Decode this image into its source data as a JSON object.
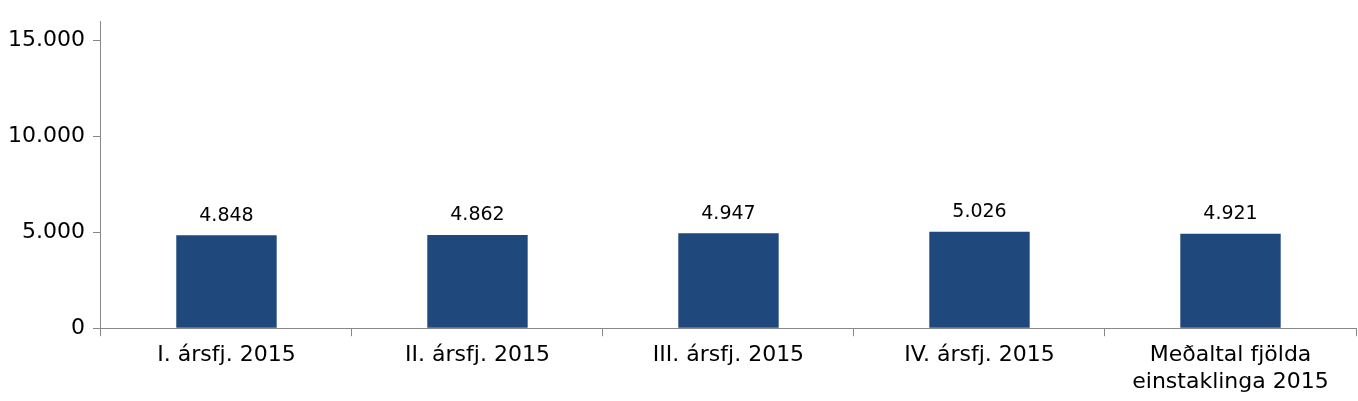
{
  "chart_data": {
    "type": "bar",
    "categories": [
      "I. ársfj. 2015",
      "II. ársfj. 2015",
      "III. ársfj. 2015",
      "IV. ársfj. 2015",
      "Meðaltal fjölda einstaklinga 2015"
    ],
    "values": [
      4848,
      4862,
      4947,
      5026,
      4921
    ],
    "value_labels": [
      "4.848",
      "4.862",
      "4.947",
      "5.026",
      "4.921"
    ],
    "color": "#1f497d",
    "ylim": [
      0,
      16000
    ],
    "yticks": [
      0,
      {
        "value": 5000,
        "label": "5.000"
      },
      {
        "value": 10000,
        "label": "10.000"
      },
      {
        "value": 15000,
        "label": "15.000"
      }
    ],
    "grid": false,
    "legend": false
  }
}
